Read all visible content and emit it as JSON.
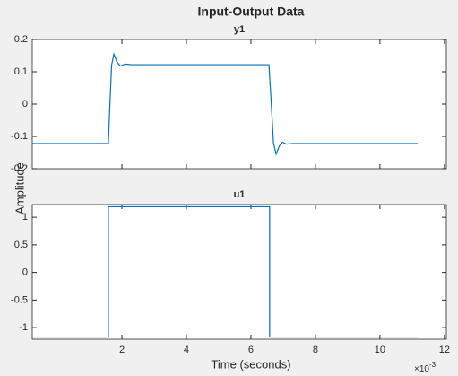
{
  "title": "Input-Output Data",
  "ylabel": "Amplitude",
  "xlabel": "Time (seconds)",
  "x_multiplier": {
    "base": "×10",
    "exponent": "-3"
  },
  "chart_data": [
    {
      "type": "line",
      "title": "y1",
      "color": "#0072bd",
      "x": [
        -0.78,
        1.58,
        1.62,
        1.68,
        1.75,
        1.85,
        1.95,
        2.1,
        2.3,
        6.56,
        6.62,
        6.7,
        6.78,
        6.88,
        6.98,
        7.1,
        7.3,
        11.17
      ],
      "values": [
        -0.122,
        -0.122,
        -0.02,
        0.12,
        0.155,
        0.13,
        0.118,
        0.124,
        0.122,
        0.122,
        0.02,
        -0.12,
        -0.155,
        -0.13,
        -0.118,
        -0.124,
        -0.122,
        -0.122
      ],
      "xlim": [
        -0.78,
        12.06
      ],
      "xticks": [
        2,
        4,
        6,
        8,
        10,
        12
      ],
      "show_xtick_labels": false,
      "ylim": [
        -0.2,
        0.2
      ],
      "yticks": [
        -0.2,
        -0.1,
        0,
        0.1,
        0.2
      ]
    },
    {
      "type": "line",
      "title": "u1",
      "color": "#0072bd",
      "x": [
        -0.78,
        1.58,
        1.58,
        6.58,
        6.58,
        11.17
      ],
      "values": [
        -1.17,
        -1.17,
        1.19,
        1.19,
        -1.17,
        -1.17
      ],
      "xlim": [
        -0.78,
        12.06
      ],
      "xticks": [
        2,
        4,
        6,
        8,
        10,
        12
      ],
      "show_xtick_labels": true,
      "ylim": [
        -1.21,
        1.23
      ],
      "yticks": [
        -1,
        -0.5,
        0,
        0.5,
        1
      ]
    }
  ]
}
